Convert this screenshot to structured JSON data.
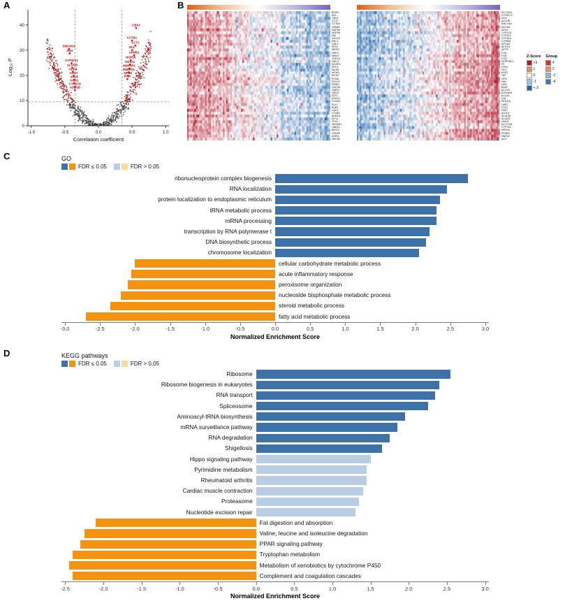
{
  "panels": {
    "a": "A",
    "b": "B",
    "c": "C",
    "d": "D"
  },
  "colors": {
    "sig_pos": "#3c72a8",
    "sig_neg": "#f59311",
    "ns_pos": "#b9cde4",
    "ns_neg": "#fbd89b",
    "volcano_nonsig": "#3a3a3a",
    "volcano_sig": "#a31515",
    "volcano_label": "#c00000",
    "heatmap_pos": "#b2182b",
    "heatmap_neg": "#2166ac"
  },
  "heatmap_legend": {
    "z_title": "Z-Score",
    "z_items": [
      {
        "label": ">3",
        "color": "#b2182b"
      },
      {
        "label": "1",
        "color": "#ef8a62"
      },
      {
        "label": "0",
        "color": "#f7f7f7"
      },
      {
        "label": "-1",
        "color": "#9ec6e0"
      },
      {
        "label": "<-3",
        "color": "#2166ac"
      }
    ],
    "group_title": "Group",
    "group_items": [
      {
        "label": "4",
        "color": "#d7301f"
      },
      {
        "label": "2",
        "color": "#fc8d59"
      },
      {
        "label": "-2",
        "color": "#91b5d6"
      },
      {
        "label": "-4",
        "color": "#4575b4"
      }
    ]
  },
  "chart_data": [
    {
      "id": "volcano",
      "type": "scatter",
      "title": "",
      "xlabel": "Correlation coefficient",
      "ylabel": "-Log₁₀ P",
      "xlim": [
        -1.05,
        1.05
      ],
      "ylim": [
        0,
        46
      ],
      "x_ticks": [
        "-1.0",
        "-0.5",
        "0.0",
        "0.5",
        "1.0"
      ],
      "y_ticks": [
        "0",
        "10",
        "20",
        "30",
        "40"
      ],
      "threshold_x": 0.35,
      "threshold_y": 9.5,
      "cloud": {
        "count": 800,
        "x_max": 0.78,
        "curve_a": 52,
        "curve_p": 1.9,
        "seed": 11
      },
      "labeled_points": [
        {
          "name": "CBX3",
          "x": 0.56,
          "y": 38.8
        },
        {
          "name": "CCT6A",
          "x": 0.5,
          "y": 33.8
        },
        {
          "name": "CCT2",
          "x": 0.55,
          "y": 31.8
        },
        {
          "name": "NCL",
          "x": 0.5,
          "y": 30.0
        },
        {
          "name": "LMNB1",
          "x": 0.53,
          "y": 28.0
        },
        {
          "name": "NOP56",
          "x": 0.48,
          "y": 26.0
        },
        {
          "name": "DDX21",
          "x": 0.47,
          "y": 24.3
        },
        {
          "name": "HNRNPC",
          "x": 0.46,
          "y": 22.7
        },
        {
          "name": "SNRPD1",
          "x": 0.45,
          "y": 21.2
        },
        {
          "name": "NPM1",
          "x": 0.44,
          "y": 19.8
        },
        {
          "name": "RAN",
          "x": 0.43,
          "y": 18.5
        },
        {
          "name": "SMCHD1",
          "x": -0.44,
          "y": 30.5
        },
        {
          "name": "XDH",
          "x": -0.43,
          "y": 28.7
        },
        {
          "name": "CYP4F12",
          "x": -0.4,
          "y": 24.8
        },
        {
          "name": "ALDOB",
          "x": -0.39,
          "y": 23.0
        },
        {
          "name": "ADH4",
          "x": -0.38,
          "y": 21.4
        },
        {
          "name": "AGXT",
          "x": -0.37,
          "y": 19.8
        },
        {
          "name": "APOF",
          "x": -0.36,
          "y": 18.3
        },
        {
          "name": "HAO1",
          "x": -0.36,
          "y": 16.9
        },
        {
          "name": "CYP2C8",
          "x": -0.35,
          "y": 15.5
        },
        {
          "name": "ADH1B",
          "x": -0.35,
          "y": 14.2
        }
      ]
    },
    {
      "id": "heatmap-positive",
      "type": "heatmap",
      "rows": 45,
      "cols": 96,
      "direction": 1,
      "amplitude": 1.5,
      "noise": 0.85,
      "seed": 3,
      "genes": [
        "BZW2",
        "NCL",
        "CBX3",
        "CCT2",
        "CCT6A",
        "LMNB1",
        "NOP56",
        "NOP58",
        "FBL",
        "DDX21",
        "DKC1",
        "GNL3",
        "PES1",
        "WDR3",
        "RRP9",
        "MKI67",
        "TOP2A",
        "SMC4",
        "NCAPG",
        "RFC4",
        "MCM2",
        "MCM3",
        "MCM7",
        "PCNA",
        "POLE2",
        "PRIM1",
        "CDC45",
        "GINS2",
        "ORC6",
        "E2F1",
        "MYBL2",
        "FOXM1",
        "PLK1",
        "BUB1",
        "CDK1",
        "CCNB1",
        "AURKA",
        "KIF11",
        "TPX2",
        "NUSAP1",
        "UBE2C",
        "BIRC5",
        "CENPF",
        "ASPM",
        "NDC80"
      ]
    },
    {
      "id": "heatmap-negative",
      "type": "heatmap",
      "rows": 45,
      "cols": 96,
      "direction": -1,
      "amplitude": 1.5,
      "noise": 0.85,
      "seed": 9,
      "genes": [
        "SLC22A1",
        "CYP4F12",
        "XDH",
        "ALDOB",
        "SMCHD1",
        "ADH1B",
        "ADH4",
        "CYP2C8",
        "CYP2E1",
        "CYP3A4",
        "CYP8B1",
        "APOA5",
        "APOC3",
        "APOF",
        "FGA",
        "FGB",
        "FGG",
        "SERPINC1",
        "F9",
        "CPS1",
        "OTC",
        "ASS1",
        "TAT",
        "HPD",
        "FAH",
        "HGD",
        "BAAT",
        "ACOX2",
        "EHHADH",
        "ACAA1",
        "CAT",
        "PEX11A",
        "G6PC",
        "PCK1",
        "FBP1",
        "ALDH2",
        "ACADM",
        "ACADS",
        "HADH",
        "SLC27A5",
        "CYP7A1",
        "NR1H4",
        "PPARA",
        "HNF4A",
        "ALB"
      ]
    },
    {
      "id": "go",
      "type": "bar",
      "title": "GO",
      "xlabel": "Normalized Enrichment Score",
      "xlim": [
        -3.05,
        3.05
      ],
      "x_ticks": [
        "-3.0",
        "-2.5",
        "-2.0",
        "-1.5",
        "-1.0",
        "-0.5",
        "0.0",
        "0.5",
        "1.0",
        "1.5",
        "2.0",
        "2.5",
        "3.0"
      ],
      "legend": [
        {
          "label": "FDR ≤ 0.05"
        },
        {
          "label": "FDR > 0.05"
        }
      ],
      "bars": [
        {
          "label": "ribonucleoprotein complex biogenesis",
          "value": 2.75,
          "fdr": "sig"
        },
        {
          "label": "RNA localization",
          "value": 2.45,
          "fdr": "sig"
        },
        {
          "label": "protein localization to endoplasmic reticulum",
          "value": 2.35,
          "fdr": "sig"
        },
        {
          "label": "tRNA metabolic process",
          "value": 2.3,
          "fdr": "sig"
        },
        {
          "label": "mRNA processing",
          "value": 2.3,
          "fdr": "sig"
        },
        {
          "label": "transcription by RNA polymerase I",
          "value": 2.2,
          "fdr": "sig"
        },
        {
          "label": "DNA biosynthetic process",
          "value": 2.15,
          "fdr": "sig"
        },
        {
          "label": "chromosome localization",
          "value": 2.05,
          "fdr": "sig"
        },
        {
          "label": "cellular carbohydrate metabolic process",
          "value": -2.0,
          "fdr": "sig"
        },
        {
          "label": "acute inflammatory response",
          "value": -2.05,
          "fdr": "sig"
        },
        {
          "label": "peroxisome organization",
          "value": -2.1,
          "fdr": "sig"
        },
        {
          "label": "nucleoside bisphosphate metabolic process",
          "value": -2.2,
          "fdr": "sig"
        },
        {
          "label": "steroid metabolic process",
          "value": -2.35,
          "fdr": "sig"
        },
        {
          "label": "fatty acid metabolic process",
          "value": -2.7,
          "fdr": "sig"
        }
      ]
    },
    {
      "id": "kegg",
      "type": "bar",
      "title": "KEGG pathways",
      "xlabel": "Normalized Enrichment Score",
      "xlim": [
        -2.55,
        3.05
      ],
      "x_ticks": [
        "-2.5",
        "-2.0",
        "-1.5",
        "-1.0",
        "-0.5",
        "0.0",
        "0.5",
        "1.0",
        "1.5",
        "2.0",
        "2.5",
        "3.0"
      ],
      "legend": [
        {
          "label": "FDR ≤ 0.05"
        },
        {
          "label": "FDR > 0.05"
        }
      ],
      "bars": [
        {
          "label": "Ribosome",
          "value": 2.55,
          "fdr": "sig"
        },
        {
          "label": "Ribosome biogenesis in eukaryotes",
          "value": 2.4,
          "fdr": "sig"
        },
        {
          "label": "RNA transport",
          "value": 2.35,
          "fdr": "sig"
        },
        {
          "label": "Spliceosome",
          "value": 2.25,
          "fdr": "sig"
        },
        {
          "label": "Aminoacyl-tRNA biosynthesis",
          "value": 1.95,
          "fdr": "sig"
        },
        {
          "label": "mRNA surveillance pathway",
          "value": 1.85,
          "fdr": "sig"
        },
        {
          "label": "RNA degradation",
          "value": 1.75,
          "fdr": "sig"
        },
        {
          "label": "Shigellosis",
          "value": 1.65,
          "fdr": "sig"
        },
        {
          "label": "Hippo signaling pathway",
          "value": 1.5,
          "fdr": "ns"
        },
        {
          "label": "Pyrimidine metabolism",
          "value": 1.45,
          "fdr": "ns"
        },
        {
          "label": "Rheumatoid arthritis",
          "value": 1.45,
          "fdr": "ns"
        },
        {
          "label": "Cardiac muscle contraction",
          "value": 1.4,
          "fdr": "ns"
        },
        {
          "label": "Proteasome",
          "value": 1.35,
          "fdr": "ns"
        },
        {
          "label": "Nucleotide excision repair",
          "value": 1.3,
          "fdr": "ns"
        },
        {
          "label": "Fat digestion and absorption",
          "value": -2.1,
          "fdr": "sig"
        },
        {
          "label": "Valine, leucine and isoleucine degradation",
          "value": -2.25,
          "fdr": "sig"
        },
        {
          "label": "PPAR signaling pathway",
          "value": -2.3,
          "fdr": "sig"
        },
        {
          "label": "Tryptophan metabolism",
          "value": -2.4,
          "fdr": "sig"
        },
        {
          "label": "Metabolism of xenobiotics by cytochrome P450",
          "value": -2.45,
          "fdr": "sig"
        },
        {
          "label": "Complement and coagulation cascades",
          "value": -2.4,
          "fdr": "sig"
        }
      ]
    }
  ]
}
